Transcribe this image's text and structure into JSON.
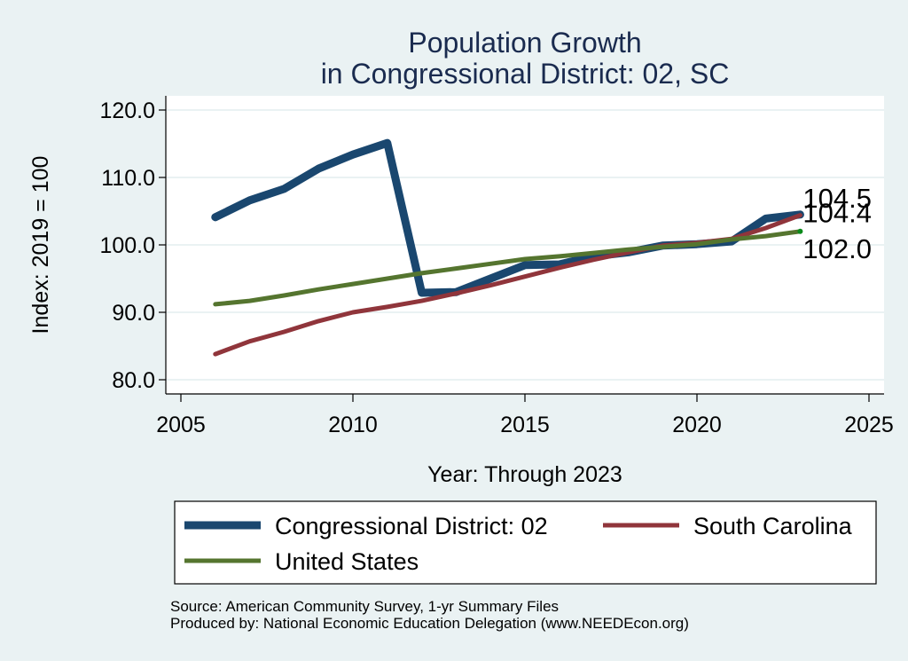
{
  "chart_data": {
    "type": "line",
    "title": [
      "Population Growth",
      "in Congressional District: 02, SC"
    ],
    "xlabel": "Year: Through 2023",
    "ylabel": "Index: 2019 = 100",
    "xlim": [
      2005,
      2025
    ],
    "ylim": [
      80,
      120
    ],
    "xticks": [
      2005,
      2010,
      2015,
      2020,
      2025
    ],
    "xtick_labels": [
      "2005",
      "2010",
      "2015",
      "2020",
      "2025"
    ],
    "yticks": [
      80,
      90,
      100,
      110,
      120
    ],
    "ytick_labels": [
      "80.0",
      "90.0",
      "100.0",
      "110.0",
      "120.0"
    ],
    "grid": "horizontal",
    "x": [
      2006,
      2007,
      2008,
      2009,
      2010,
      2011,
      2012,
      2013,
      2014,
      2015,
      2016,
      2017,
      2018,
      2019,
      2020,
      2021,
      2022,
      2023
    ],
    "series": [
      {
        "name": "Congressional District: 02",
        "color": "#1a476f",
        "values": [
          104.1,
          106.6,
          108.3,
          111.3,
          113.4,
          115.1,
          92.9,
          93.0,
          95.0,
          97.0,
          97.1,
          98.3,
          98.9,
          99.9,
          100.1,
          100.5,
          103.9,
          104.5
        ],
        "end_label": "104.5"
      },
      {
        "name": "South Carolina",
        "color": "#90353b",
        "values": [
          83.8,
          85.7,
          87.1,
          88.7,
          90.0,
          90.8,
          91.7,
          92.8,
          94.0,
          95.3,
          96.6,
          97.8,
          98.9,
          99.9,
          100.3,
          100.9,
          102.5,
          104.4
        ],
        "end_label": "104.4"
      },
      {
        "name": "United States",
        "color": "#55752f",
        "values": [
          91.2,
          91.7,
          92.5,
          93.4,
          94.2,
          95.0,
          95.8,
          96.5,
          97.2,
          97.9,
          98.3,
          98.8,
          99.3,
          99.7,
          100.1,
          100.8,
          101.3,
          102.0
        ],
        "end_label": "102.0"
      }
    ],
    "legend": {
      "placement": "bottom",
      "entries": [
        "Congressional District: 02",
        "South Carolina",
        "United States"
      ]
    },
    "notes": [
      "Source: American Community Survey, 1-yr Summary Files",
      "Produced by: National Economic Education Delegation (www.NEEDEcon.org)"
    ]
  }
}
